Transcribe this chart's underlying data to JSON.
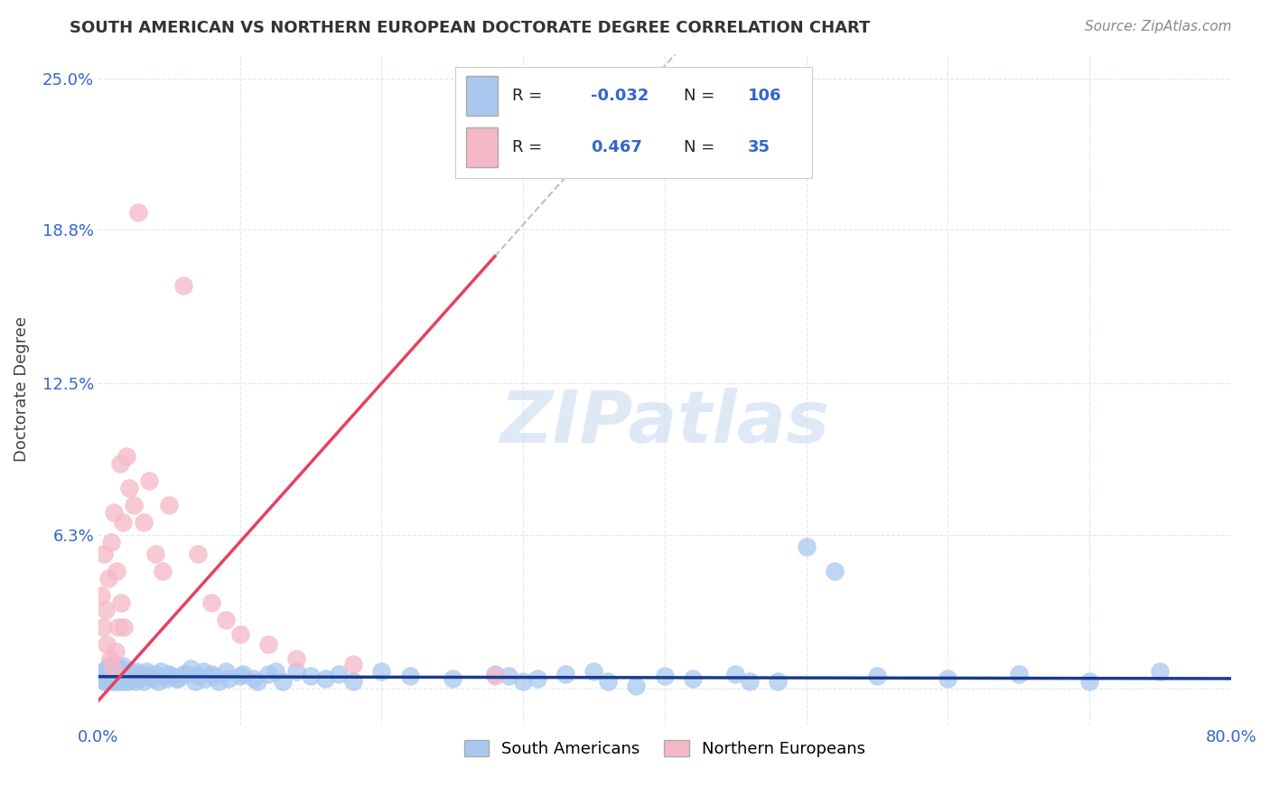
{
  "title": "SOUTH AMERICAN VS NORTHERN EUROPEAN DOCTORATE DEGREE CORRELATION CHART",
  "source": "Source: ZipAtlas.com",
  "ylabel": "Doctorate Degree",
  "xlim": [
    0.0,
    0.8
  ],
  "ylim": [
    -0.015,
    0.26
  ],
  "yticks": [
    0.0,
    0.063,
    0.125,
    0.188,
    0.25
  ],
  "yticklabels": [
    "",
    "6.3%",
    "12.5%",
    "18.8%",
    "25.0%"
  ],
  "sa_color": "#a8c8f0",
  "ne_color": "#f5b8c8",
  "sa_line_color": "#1a3a8c",
  "ne_line_color": "#e84060",
  "dashed_line_color": "#c0c0c0",
  "watermark": "ZIPatlas",
  "legend_sa_label": "South Americans",
  "legend_ne_label": "Northern Europeans",
  "legend_r_sa": "-0.032",
  "legend_n_sa": "106",
  "legend_r_ne": "0.467",
  "legend_n_ne": "35",
  "sa_x": [
    0.002,
    0.003,
    0.003,
    0.004,
    0.004,
    0.005,
    0.005,
    0.006,
    0.006,
    0.007,
    0.007,
    0.008,
    0.008,
    0.009,
    0.009,
    0.01,
    0.01,
    0.011,
    0.011,
    0.012,
    0.012,
    0.013,
    0.013,
    0.014,
    0.014,
    0.015,
    0.015,
    0.016,
    0.016,
    0.017,
    0.017,
    0.018,
    0.018,
    0.019,
    0.019,
    0.02,
    0.021,
    0.022,
    0.023,
    0.024,
    0.025,
    0.026,
    0.027,
    0.028,
    0.029,
    0.03,
    0.032,
    0.034,
    0.036,
    0.038,
    0.04,
    0.042,
    0.044,
    0.046,
    0.048,
    0.05,
    0.055,
    0.06,
    0.065,
    0.07,
    0.075,
    0.08,
    0.085,
    0.09,
    0.1,
    0.11,
    0.12,
    0.13,
    0.14,
    0.15,
    0.16,
    0.17,
    0.18,
    0.2,
    0.22,
    0.25,
    0.28,
    0.3,
    0.35,
    0.4,
    0.42,
    0.45,
    0.48,
    0.5,
    0.52,
    0.55,
    0.6,
    0.65,
    0.7,
    0.75,
    0.052,
    0.056,
    0.062,
    0.068,
    0.074,
    0.082,
    0.092,
    0.102,
    0.112,
    0.125,
    0.38,
    0.46,
    0.29,
    0.31,
    0.33,
    0.36
  ],
  "sa_y": [
    0.005,
    0.004,
    0.007,
    0.006,
    0.003,
    0.007,
    0.003,
    0.008,
    0.004,
    0.005,
    0.009,
    0.004,
    0.006,
    0.003,
    0.007,
    0.005,
    0.008,
    0.004,
    0.006,
    0.003,
    0.007,
    0.005,
    0.009,
    0.004,
    0.006,
    0.003,
    0.008,
    0.004,
    0.007,
    0.005,
    0.009,
    0.003,
    0.007,
    0.005,
    0.004,
    0.006,
    0.003,
    0.007,
    0.005,
    0.004,
    0.006,
    0.003,
    0.007,
    0.005,
    0.004,
    0.006,
    0.003,
    0.007,
    0.005,
    0.004,
    0.006,
    0.003,
    0.007,
    0.005,
    0.004,
    0.006,
    0.004,
    0.006,
    0.008,
    0.005,
    0.004,
    0.006,
    0.003,
    0.007,
    0.005,
    0.004,
    0.006,
    0.003,
    0.007,
    0.005,
    0.004,
    0.006,
    0.003,
    0.007,
    0.005,
    0.004,
    0.006,
    0.003,
    0.007,
    0.005,
    0.004,
    0.006,
    0.003,
    0.058,
    0.048,
    0.005,
    0.004,
    0.006,
    0.003,
    0.007,
    0.005,
    0.004,
    0.006,
    0.003,
    0.007,
    0.005,
    0.004,
    0.006,
    0.003,
    0.007,
    0.001,
    0.003,
    0.005,
    0.004,
    0.006,
    0.003
  ],
  "ne_x": [
    0.002,
    0.003,
    0.004,
    0.005,
    0.006,
    0.007,
    0.008,
    0.009,
    0.01,
    0.011,
    0.012,
    0.013,
    0.014,
    0.015,
    0.016,
    0.017,
    0.018,
    0.02,
    0.022,
    0.025,
    0.028,
    0.032,
    0.036,
    0.04,
    0.045,
    0.05,
    0.06,
    0.07,
    0.08,
    0.09,
    0.1,
    0.12,
    0.14,
    0.18,
    0.28
  ],
  "ne_y": [
    0.038,
    0.025,
    0.055,
    0.032,
    0.018,
    0.045,
    0.012,
    0.06,
    0.008,
    0.072,
    0.015,
    0.048,
    0.025,
    0.092,
    0.035,
    0.068,
    0.025,
    0.095,
    0.082,
    0.075,
    0.195,
    0.068,
    0.085,
    0.055,
    0.048,
    0.075,
    0.165,
    0.055,
    0.035,
    0.028,
    0.022,
    0.018,
    0.012,
    0.01,
    0.005
  ],
  "grid_color": "#dde8f0",
  "title_color": "#333333",
  "axis_tick_color": "#3366cc",
  "background_color": "#ffffff"
}
